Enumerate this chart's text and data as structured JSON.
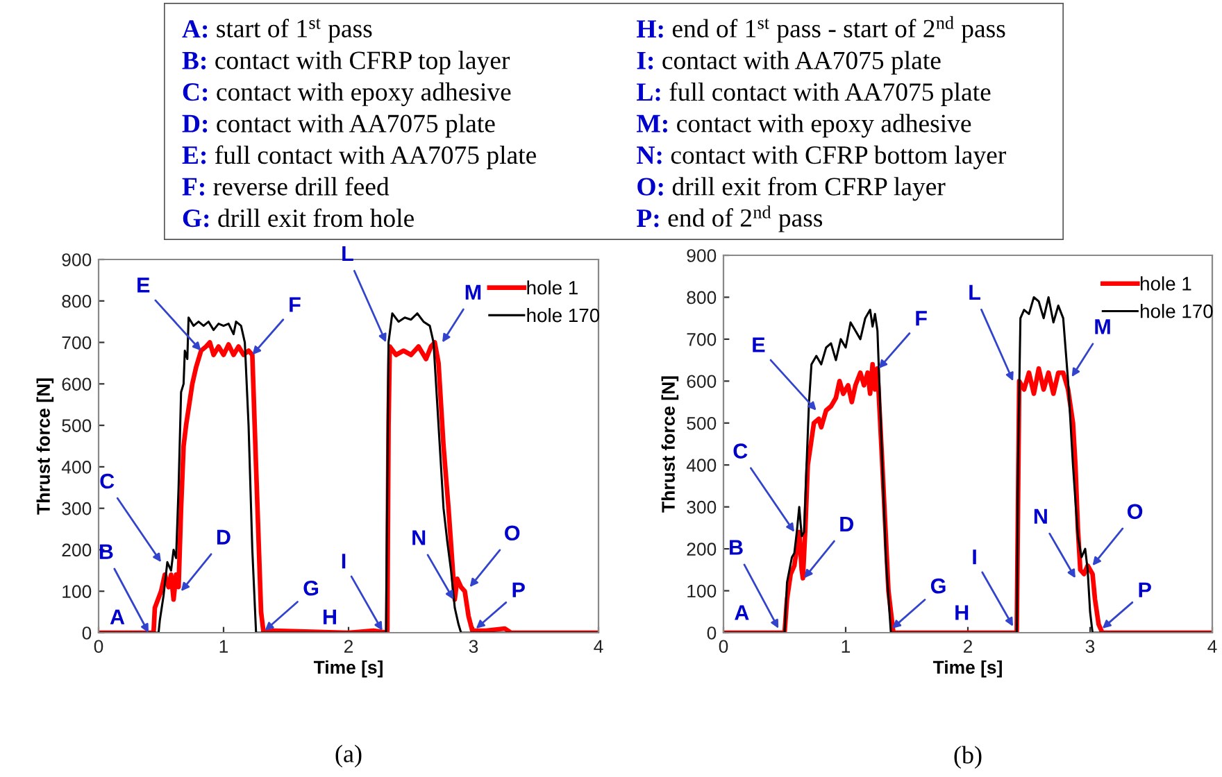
{
  "chart_data": [
    {
      "type": "other",
      "annotations": [
        "A: start of 1$^{st}$ pass",
        "B: contact with CFRP top layer",
        "C: contact with epoxy adhesive",
        "D: contact with AA7075 plate",
        "E: full contact with AA7075 plate",
        "F: reverse drill feed",
        "G: drill exit from hole",
        "H: end of 1$^{st}$ pass - start of 2$^{nd}$ pass",
        "I: contact with AA7075 plate",
        "L: full contact with AA7075 plate",
        "M: contact with epoxy adhesive",
        "N: contact with CFRP bottom layer",
        "O: drill exit from CFRP layer",
        "P: end of 2$^{nd}$ pass"
      ]
    },
    {
      "type": "line",
      "xlabel": "Time [s]",
      "ylabel": "Thrust force [N]",
      "xlim": [
        0,
        4
      ],
      "ylim": [
        0,
        900
      ],
      "xticks": [
        0,
        1,
        2,
        3,
        4
      ],
      "yticks": [
        0,
        100,
        200,
        300,
        400,
        500,
        600,
        700,
        800,
        900
      ],
      "grid": false,
      "legend": "top right",
      "marker": "none",
      "line_style": "solid",
      "series": [
        {
          "name": "hole 1",
          "color": "#ff0000",
          "x": [
            0,
            0.44,
            0.45,
            0.5,
            0.53,
            0.56,
            0.58,
            0.6,
            0.62,
            0.64,
            0.66,
            0.68,
            0.7,
            0.72,
            0.75,
            0.78,
            0.82,
            0.86,
            0.89,
            0.92,
            0.96,
            1.0,
            1.04,
            1.08,
            1.12,
            1.16,
            1.2,
            1.23,
            1.26,
            1.3,
            1.32,
            1.4,
            2.0,
            2.2,
            2.31,
            2.32,
            2.33,
            2.38,
            2.44,
            2.5,
            2.56,
            2.62,
            2.66,
            2.69,
            2.72,
            2.76,
            2.8,
            2.83,
            2.85,
            2.87,
            2.9,
            2.93,
            2.96,
            2.99,
            3.1,
            3.25,
            3.3,
            4
          ],
          "values": [
            0,
            0,
            60,
            100,
            140,
            110,
            140,
            80,
            140,
            110,
            300,
            450,
            500,
            540,
            600,
            640,
            680,
            690,
            700,
            670,
            690,
            670,
            695,
            670,
            690,
            670,
            680,
            670,
            400,
            50,
            0,
            5,
            0,
            5,
            0,
            500,
            690,
            670,
            680,
            670,
            690,
            660,
            690,
            700,
            650,
            450,
            300,
            170,
            80,
            130,
            110,
            100,
            40,
            5,
            5,
            10,
            0,
            0
          ]
        },
        {
          "name": "hole 170",
          "color": "#000000",
          "x": [
            0,
            0.48,
            0.49,
            0.52,
            0.55,
            0.58,
            0.6,
            0.62,
            0.64,
            0.66,
            0.68,
            0.69,
            0.71,
            0.72,
            0.76,
            0.8,
            0.84,
            0.88,
            0.92,
            0.96,
            1.0,
            1.04,
            1.08,
            1.1,
            1.14,
            1.17,
            1.2,
            1.23,
            1.26,
            2.3,
            2.31,
            2.32,
            2.35,
            2.4,
            2.45,
            2.5,
            2.55,
            2.6,
            2.65,
            2.68,
            2.72,
            2.76,
            2.79,
            2.82,
            2.85,
            2.88,
            2.9,
            4
          ],
          "values": [
            0,
            0,
            30,
            90,
            170,
            150,
            200,
            180,
            350,
            580,
            600,
            680,
            660,
            760,
            740,
            750,
            740,
            750,
            730,
            745,
            740,
            745,
            720,
            750,
            740,
            700,
            500,
            200,
            0,
            0,
            350,
            700,
            770,
            750,
            760,
            755,
            770,
            750,
            740,
            700,
            500,
            300,
            220,
            150,
            60,
            20,
            0,
            0
          ]
        }
      ],
      "annotations": [
        {
          "text": "A",
          "x": 0.15,
          "y": 10
        },
        {
          "text": "B",
          "x": 0.4,
          "y": 0
        },
        {
          "text": "C",
          "x": 0.5,
          "y": 170
        },
        {
          "text": "D",
          "x": 0.66,
          "y": 100
        },
        {
          "text": "E",
          "x": 0.82,
          "y": 680
        },
        {
          "text": "F",
          "x": 1.23,
          "y": 670
        },
        {
          "text": "G",
          "x": 1.33,
          "y": 5
        },
        {
          "text": "H",
          "x": 1.85,
          "y": 10
        },
        {
          "text": "I",
          "x": 2.27,
          "y": 5
        },
        {
          "text": "L",
          "x": 2.3,
          "y": 700
        },
        {
          "text": "M",
          "x": 2.75,
          "y": 700
        },
        {
          "text": "N",
          "x": 2.84,
          "y": 80
        },
        {
          "text": "O",
          "x": 2.97,
          "y": 110
        },
        {
          "text": "P",
          "x": 3.02,
          "y": 10
        },
        "(a)"
      ]
    },
    {
      "type": "line",
      "xlabel": "Time [s]",
      "ylabel": "Thrust force [N]",
      "xlim": [
        0,
        4
      ],
      "ylim": [
        0,
        900
      ],
      "xticks": [
        0,
        1,
        2,
        3,
        4
      ],
      "yticks": [
        0,
        100,
        200,
        300,
        400,
        500,
        600,
        700,
        800,
        900
      ],
      "grid": false,
      "legend": "top right",
      "marker": "none",
      "line_style": "solid",
      "series": [
        {
          "name": "hole 1",
          "color": "#ff0000",
          "x": [
            0,
            0.5,
            0.52,
            0.55,
            0.58,
            0.6,
            0.62,
            0.64,
            0.65,
            0.67,
            0.69,
            0.72,
            0.74,
            0.78,
            0.8,
            0.84,
            0.88,
            0.92,
            0.95,
            0.98,
            1.02,
            1.05,
            1.08,
            1.12,
            1.15,
            1.18,
            1.2,
            1.22,
            1.24,
            1.26,
            1.3,
            1.35,
            1.39,
            2.4,
            2.41,
            2.42,
            2.46,
            2.5,
            2.54,
            2.58,
            2.62,
            2.66,
            2.7,
            2.74,
            2.78,
            2.82,
            2.86,
            2.88,
            2.9,
            2.92,
            2.95,
            2.98,
            3.02,
            3.04,
            3.07,
            3.1,
            4
          ],
          "values": [
            0,
            0,
            80,
            140,
            160,
            200,
            240,
            150,
            130,
            250,
            400,
            460,
            500,
            510,
            490,
            530,
            540,
            560,
            600,
            570,
            590,
            550,
            590,
            620,
            590,
            620,
            570,
            640,
            580,
            630,
            400,
            100,
            0,
            0,
            300,
            600,
            580,
            620,
            570,
            630,
            580,
            620,
            570,
            620,
            620,
            580,
            500,
            400,
            250,
            150,
            140,
            160,
            140,
            80,
            20,
            0,
            0
          ]
        },
        {
          "name": "hole 170",
          "color": "#000000",
          "x": [
            0,
            0.5,
            0.52,
            0.56,
            0.58,
            0.6,
            0.62,
            0.64,
            0.66,
            0.68,
            0.7,
            0.72,
            0.76,
            0.8,
            0.84,
            0.88,
            0.92,
            0.96,
            1.0,
            1.04,
            1.08,
            1.12,
            1.16,
            1.2,
            1.22,
            1.24,
            1.26,
            1.3,
            1.33,
            1.37,
            2.4,
            2.41,
            2.43,
            2.46,
            2.5,
            2.54,
            2.58,
            2.62,
            2.66,
            2.7,
            2.74,
            2.78,
            2.82,
            2.86,
            2.9,
            2.93,
            2.96,
            2.98,
            3.0,
            3.02,
            4
          ],
          "values": [
            0,
            0,
            120,
            180,
            190,
            240,
            300,
            230,
            240,
            400,
            550,
            640,
            660,
            640,
            680,
            690,
            650,
            700,
            680,
            740,
            720,
            700,
            750,
            770,
            730,
            760,
            720,
            400,
            170,
            0,
            0,
            400,
            750,
            770,
            760,
            800,
            790,
            750,
            800,
            740,
            780,
            750,
            600,
            400,
            230,
            180,
            200,
            150,
            50,
            0,
            0
          ]
        }
      ],
      "annotations": [
        {
          "text": "A",
          "x": 0.15,
          "y": 20
        },
        {
          "text": "B",
          "x": 0.45,
          "y": 10
        },
        {
          "text": "C",
          "x": 0.58,
          "y": 240
        },
        {
          "text": "D",
          "x": 0.66,
          "y": 130
        },
        {
          "text": "E",
          "x": 0.76,
          "y": 530
        },
        {
          "text": "F",
          "x": 1.27,
          "y": 630
        },
        {
          "text": "G",
          "x": 1.38,
          "y": 10
        },
        {
          "text": "H",
          "x": 1.95,
          "y": 20
        },
        {
          "text": "I",
          "x": 2.37,
          "y": 15
        },
        {
          "text": "L",
          "x": 2.37,
          "y": 600
        },
        {
          "text": "M",
          "x": 2.85,
          "y": 610
        },
        {
          "text": "N",
          "x": 2.88,
          "y": 130
        },
        {
          "text": "O",
          "x": 3.02,
          "y": 160
        },
        {
          "text": "P",
          "x": 3.1,
          "y": 10
        },
        "(b)"
      ]
    }
  ]
}
